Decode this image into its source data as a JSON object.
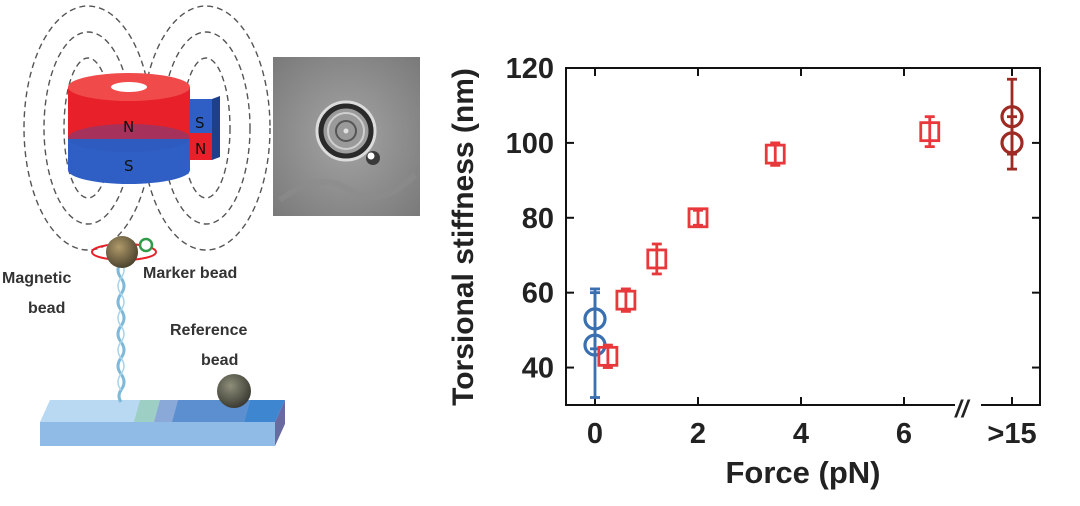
{
  "schematic": {
    "magnet_main_top_pole": "N",
    "magnet_main_bottom_pole": "S",
    "magnet_side_top_pole": "S",
    "magnet_side_bottom_pole": "N",
    "label_magnetic_bead_line1": "Magnetic",
    "label_magnetic_bead_line2": "bead",
    "label_marker_bead": "Marker bead",
    "label_reference_bead_line1": "Reference",
    "label_reference_bead_line2": "bead"
  },
  "colors": {
    "magnet_red": "#e8202a",
    "magnet_blue": "#2f5fc4",
    "series_red": "#e8383c",
    "series_blue": "#3a6fb0",
    "series_darkred": "#9e2a24"
  },
  "chart_data": {
    "type": "scatter",
    "xlabel": "Force (pN)",
    "ylabel": "Torsional stiffness (nm)",
    "ylim": [
      30,
      120
    ],
    "y_ticks": [
      40,
      60,
      80,
      100,
      120
    ],
    "x_tick_labels": [
      {
        "value": 0,
        "label": "0"
      },
      {
        "value": 2,
        "label": "2"
      },
      {
        "value": 4,
        "label": "4"
      },
      {
        "value": 6,
        "label": "6"
      },
      {
        "value": ">15",
        "label": ">15"
      }
    ],
    "axis_break": "//",
    "series": [
      {
        "marker": "circle",
        "color": "#3a6fb0",
        "points": [
          {
            "x": 0,
            "y": 53,
            "err": 8
          },
          {
            "x": 0,
            "y": 46,
            "err": 14
          }
        ]
      },
      {
        "marker": "square",
        "color": "#e8383c",
        "points": [
          {
            "x": 0.25,
            "y": 43,
            "err": 3
          },
          {
            "x": 0.6,
            "y": 58,
            "err": 3
          },
          {
            "x": 1.2,
            "y": 69,
            "err": 4
          },
          {
            "x": 2.0,
            "y": 80,
            "err": 2
          },
          {
            "x": 3.5,
            "y": 97,
            "err": 3
          },
          {
            "x": 6.5,
            "y": 103,
            "err": 4
          }
        ]
      },
      {
        "marker": "circle",
        "color": "#9e2a24",
        "points": [
          {
            "x": ">15",
            "y": 107,
            "err": 10
          },
          {
            "x": ">15",
            "y": 100,
            "err": 7
          }
        ]
      }
    ]
  }
}
